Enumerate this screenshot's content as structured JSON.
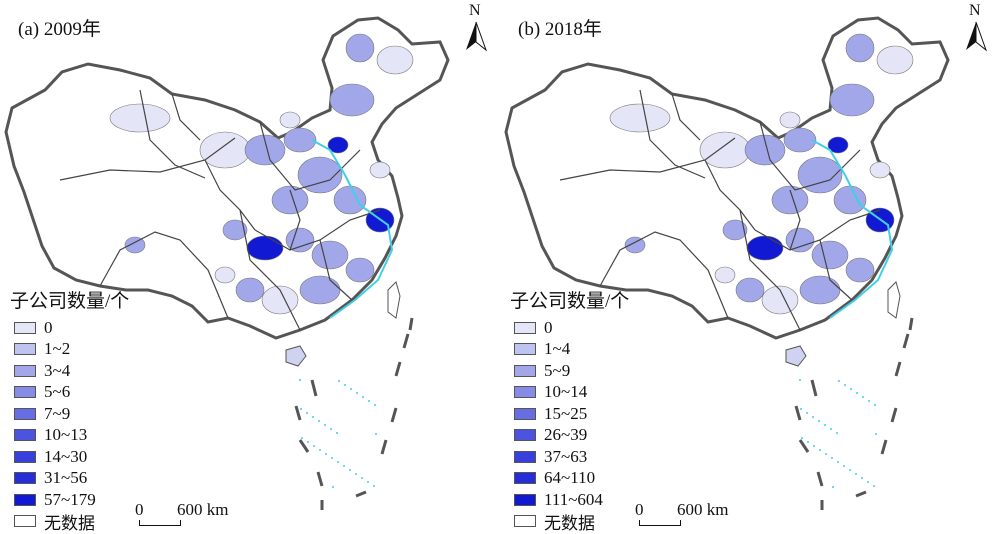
{
  "panels": [
    {
      "title": "(a) 2009年",
      "legend_title": "子公司数量/个",
      "legend": [
        {
          "label": "0",
          "color": "#e4e6f8"
        },
        {
          "label": "1~2",
          "color": "#bfc3ef"
        },
        {
          "label": "3~4",
          "color": "#a2a7ea"
        },
        {
          "label": "5~6",
          "color": "#858be6"
        },
        {
          "label": "7~9",
          "color": "#676ee3"
        },
        {
          "label": "10~13",
          "color": "#4c53df"
        },
        {
          "label": "14~30",
          "color": "#3840dc"
        },
        {
          "label": "31~56",
          "color": "#252ed8"
        },
        {
          "label": "57~179",
          "color": "#1219d2"
        },
        {
          "label": "无数据",
          "color": "#ffffff"
        }
      ],
      "scale": {
        "zero": "0",
        "label": "600 km"
      },
      "north": "N"
    },
    {
      "title": "(b) 2018年",
      "legend_title": "子公司数量/个",
      "legend": [
        {
          "label": "0",
          "color": "#e4e6f8"
        },
        {
          "label": "1~4",
          "color": "#bfc3ef"
        },
        {
          "label": "5~9",
          "color": "#a2a7ea"
        },
        {
          "label": "10~14",
          "color": "#858be6"
        },
        {
          "label": "15~25",
          "color": "#676ee3"
        },
        {
          "label": "26~39",
          "color": "#4c53df"
        },
        {
          "label": "37~63",
          "color": "#3840dc"
        },
        {
          "label": "64~110",
          "color": "#252ed8"
        },
        {
          "label": "111~604",
          "color": "#1219d2"
        },
        {
          "label": "无数据",
          "color": "#ffffff"
        }
      ],
      "scale": {
        "zero": "0",
        "label": "600 km"
      },
      "north": "N"
    }
  ],
  "colors": {
    "outline": "#555555",
    "coast": "#3fd0e6",
    "no_data": "#ffffff",
    "light": "#e4e6f8",
    "medium": "#a2a7ea",
    "dark": "#1219d2"
  }
}
